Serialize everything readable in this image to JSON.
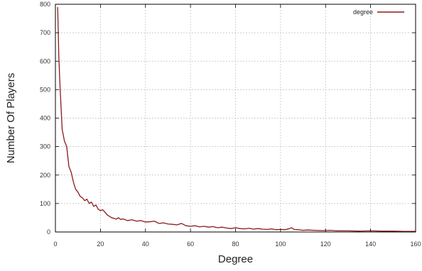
{
  "chart_data": {
    "type": "line",
    "title": "",
    "xlabel": "Degree",
    "ylabel": "Number Of Players",
    "xlim": [
      0,
      160
    ],
    "ylim": [
      0,
      800
    ],
    "xticks": [
      0,
      20,
      40,
      60,
      80,
      100,
      120,
      140,
      160
    ],
    "yticks": [
      0,
      100,
      200,
      300,
      400,
      500,
      600,
      700,
      800
    ],
    "grid": true,
    "legend_position": "top-right",
    "series": [
      {
        "name": "degree",
        "color": "#8b1a1a",
        "x": [
          1,
          1.5,
          2,
          3,
          4,
          5,
          6,
          7,
          8,
          9,
          10,
          11,
          12,
          13,
          14,
          15,
          16,
          17,
          18,
          19,
          20,
          21,
          22,
          23,
          24,
          25,
          26,
          27,
          28,
          29,
          30,
          32,
          34,
          36,
          38,
          40,
          42,
          44,
          46,
          48,
          50,
          52,
          54,
          56,
          58,
          60,
          62,
          64,
          66,
          68,
          70,
          72,
          74,
          76,
          78,
          80,
          82,
          84,
          86,
          88,
          90,
          92,
          94,
          96,
          98,
          100,
          102,
          104,
          105,
          106,
          108,
          110,
          112,
          115,
          118,
          120,
          122,
          125,
          130,
          135,
          140,
          145,
          150,
          155,
          160
        ],
        "y": [
          790,
          620,
          520,
          360,
          320,
          300,
          230,
          210,
          175,
          150,
          140,
          125,
          120,
          110,
          115,
          100,
          105,
          90,
          95,
          80,
          75,
          78,
          70,
          60,
          55,
          50,
          48,
          45,
          50,
          44,
          46,
          40,
          43,
          38,
          40,
          35,
          36,
          38,
          30,
          32,
          28,
          27,
          25,
          30,
          22,
          20,
          22,
          18,
          20,
          17,
          19,
          15,
          17,
          14,
          12,
          15,
          12,
          11,
          13,
          10,
          12,
          10,
          9,
          11,
          8,
          9,
          8,
          12,
          15,
          9,
          8,
          6,
          7,
          6,
          5,
          5,
          6,
          4,
          4,
          3,
          4,
          3,
          3,
          2,
          2
        ]
      }
    ]
  }
}
